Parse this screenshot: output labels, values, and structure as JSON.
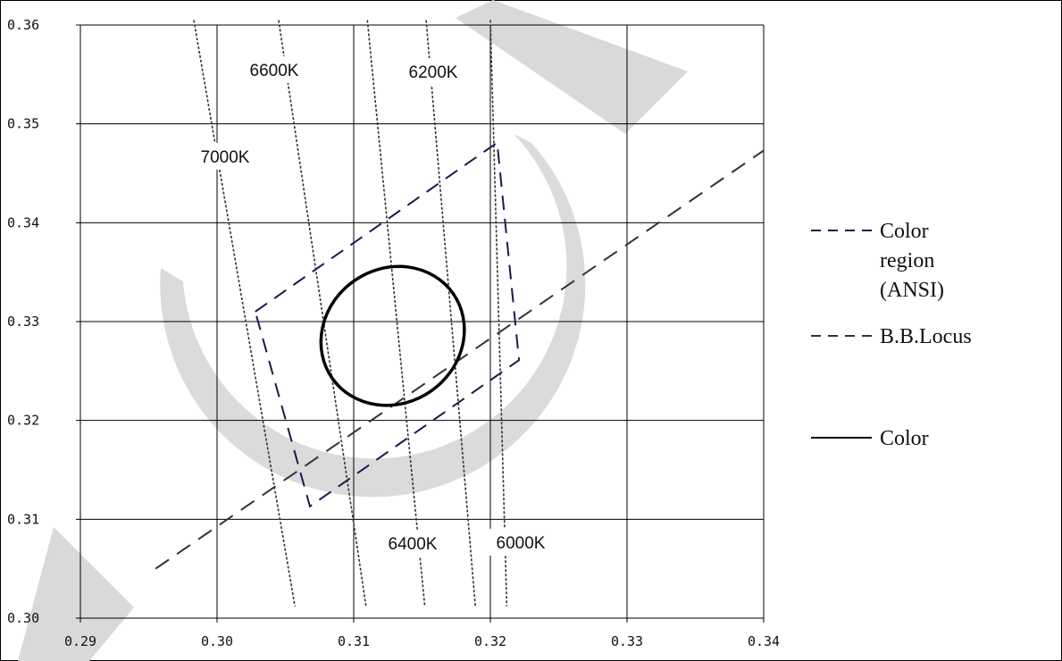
{
  "chart_data": {
    "type": "line",
    "xlim": [
      0.29,
      0.34
    ],
    "ylim": [
      0.3,
      0.36
    ],
    "x_ticks": [
      "0.29",
      "0.30",
      "0.31",
      "0.32",
      "0.33",
      "0.34"
    ],
    "y_ticks": [
      "0.30",
      "0.31",
      "0.32",
      "0.33",
      "0.34",
      "0.35",
      "0.36"
    ],
    "grid": true,
    "legend_position": "right",
    "legend": [
      {
        "lines": [
          "Color",
          "region",
          "(ANSI)"
        ],
        "style": "dashed",
        "color": "#1a1a4a"
      },
      {
        "lines": [
          "B.B.Locus"
        ],
        "style": "dashed",
        "color": "#333333"
      },
      {
        "lines": [
          "Color"
        ],
        "style": "solid",
        "color": "#000000"
      }
    ],
    "series": [
      {
        "name": "Color region (ANSI)",
        "style": "dashed",
        "color": "#1a1a4a",
        "points": [
          [
            0.3028,
            0.331
          ],
          [
            0.3205,
            0.3481
          ],
          [
            0.3221,
            0.3261
          ],
          [
            0.3068,
            0.3113
          ],
          [
            0.3028,
            0.331
          ]
        ]
      },
      {
        "name": "B.B.Locus",
        "style": "dashed",
        "color": "#333333",
        "points": [
          [
            0.2955,
            0.305
          ],
          [
            0.34,
            0.3473
          ]
        ]
      },
      {
        "name": "Color",
        "style": "solid",
        "color": "#000000",
        "ellipse": {
          "center": [
            0.31285,
            0.32855
          ],
          "rx": 0.0054,
          "ry": 0.0068,
          "rotation_deg": -35
        }
      }
    ],
    "isotemperature_lines": [
      {
        "label": "7000K",
        "points": [
          [
            0.2983,
            0.3605
          ],
          [
            0.3057,
            0.3012
          ]
        ]
      },
      {
        "label": "6600K",
        "points": [
          [
            0.3045,
            0.3605
          ],
          [
            0.3109,
            0.3012
          ]
        ]
      },
      {
        "label": "6400K",
        "points": [
          [
            0.311,
            0.3605
          ],
          [
            0.3152,
            0.3012
          ]
        ]
      },
      {
        "label": "6200K",
        "points": [
          [
            0.3153,
            0.3605
          ],
          [
            0.3189,
            0.3012
          ]
        ]
      },
      {
        "label": "6000K",
        "points": [
          [
            0.32,
            0.3605
          ],
          [
            0.3212,
            0.3012
          ]
        ]
      }
    ],
    "annotations": [
      "7000K",
      "6600K",
      "6400K",
      "6200K",
      "6000K"
    ],
    "colors": {
      "grid": "#000000",
      "watermark": "#d9d9d9"
    }
  }
}
